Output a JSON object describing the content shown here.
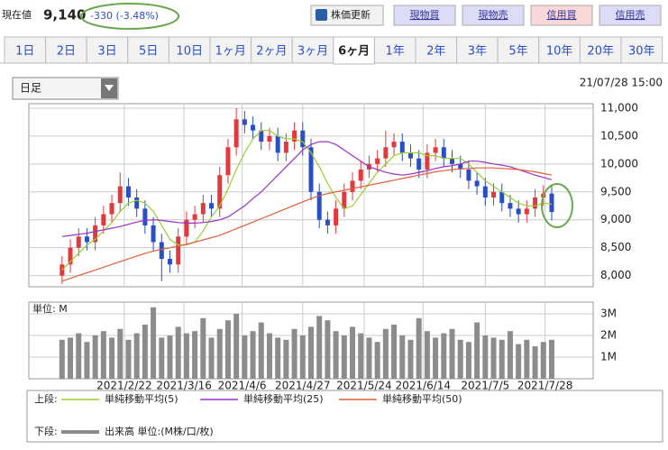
{
  "header": {
    "label": "現在値",
    "price": "9,140",
    "change": "-330 (-3.48%)",
    "refresh": "株価更新",
    "buttons": [
      "現物買",
      "現物売",
      "信用買",
      "信用売"
    ]
  },
  "tabs": [
    "1日",
    "2日",
    "3日",
    "5日",
    "10日",
    "1ヶ月",
    "2ヶ月",
    "3ヶ月",
    "6ヶ月",
    "1年",
    "2年",
    "3年",
    "5年",
    "10年",
    "20年",
    "30年"
  ],
  "selected_tab": 8,
  "dropdown": "日足",
  "timestamp": "21/07/28 15:00",
  "chart_data": [
    {
      "type": "candlestick",
      "legend_title": "上段:",
      "up_color": "#e0393e",
      "down_color": "#2a4fc4",
      "open": [
        8000,
        8200,
        8500,
        8700,
        8600,
        8900,
        9100,
        9300,
        9600,
        9400,
        9200,
        8900,
        8600,
        8300,
        8200,
        8700,
        9000,
        9100,
        9300,
        9200,
        9800,
        10300,
        10800,
        10700,
        10600,
        10400,
        10500,
        10200,
        10400,
        10600,
        10300,
        9500,
        9000,
        8900,
        9200,
        9500,
        9700,
        9900,
        10000,
        10100,
        10300,
        10400,
        10200,
        10100,
        9900,
        10200,
        10300,
        10100,
        10000,
        9900,
        9700,
        9600,
        9400,
        9500,
        9300,
        9200,
        9100,
        9200,
        9400,
        9470
      ],
      "high": [
        8350,
        8650,
        8850,
        8850,
        9050,
        9250,
        9450,
        9850,
        9750,
        9550,
        9350,
        9050,
        8750,
        8450,
        8850,
        9150,
        9250,
        9450,
        9450,
        9950,
        10450,
        11000,
        10950,
        10850,
        10750,
        10650,
        10650,
        10550,
        10750,
        10750,
        10450,
        9650,
        9150,
        9350,
        9650,
        9850,
        10050,
        10150,
        10250,
        10600,
        10550,
        10550,
        10350,
        10250,
        10350,
        10450,
        10450,
        10250,
        10150,
        10050,
        9850,
        9750,
        9650,
        9650,
        9450,
        9350,
        9350,
        9550,
        9620,
        9620
      ],
      "low": [
        7850,
        8050,
        8350,
        8450,
        8450,
        8750,
        8950,
        9150,
        9250,
        9050,
        8750,
        8450,
        7900,
        8050,
        8050,
        8550,
        8850,
        8950,
        9050,
        9050,
        9650,
        10150,
        10550,
        10450,
        10250,
        10250,
        10050,
        10050,
        10250,
        10150,
        9350,
        8850,
        8750,
        8750,
        9050,
        9350,
        9550,
        9750,
        9850,
        9950,
        10150,
        10050,
        9950,
        9750,
        9750,
        10050,
        9950,
        9850,
        9750,
        9550,
        9450,
        9250,
        9250,
        9150,
        9050,
        8950,
        8950,
        9050,
        9250,
        8990
      ],
      "close": [
        8200,
        8500,
        8700,
        8600,
        8900,
        9100,
        9300,
        9600,
        9400,
        9200,
        8900,
        8600,
        8300,
        8200,
        8700,
        9000,
        9100,
        9300,
        9200,
        9800,
        10300,
        10800,
        10700,
        10600,
        10400,
        10500,
        10200,
        10400,
        10600,
        10300,
        9500,
        9000,
        8900,
        9200,
        9500,
        9700,
        9900,
        10000,
        10100,
        10300,
        10400,
        10200,
        10100,
        9900,
        10200,
        10300,
        10100,
        10000,
        9900,
        9700,
        9600,
        9400,
        9500,
        9300,
        9200,
        9100,
        9200,
        9400,
        9470,
        9140
      ],
      "series": [
        {
          "name": "単純移動平均(5)",
          "color": "#9acd32",
          "values": [
            8100,
            8250,
            8400,
            8550,
            8650,
            8800,
            8950,
            9150,
            9300,
            9350,
            9300,
            9150,
            8900,
            8650,
            8550,
            8550,
            8600,
            8800,
            9050,
            9250,
            9550,
            9900,
            10200,
            10450,
            10600,
            10600,
            10500,
            10450,
            10450,
            10400,
            10200,
            9950,
            9650,
            9400,
            9200,
            9250,
            9450,
            9650,
            9850,
            10000,
            10150,
            10200,
            10200,
            10200,
            10150,
            10150,
            10100,
            10100,
            10100,
            10000,
            9850,
            9700,
            9600,
            9500,
            9400,
            9300,
            9250,
            9250,
            9300,
            9280
          ]
        },
        {
          "name": "単純移動平均(25)",
          "color": "#9b30c8",
          "values": [
            8700,
            8720,
            8740,
            8760,
            8790,
            8820,
            8850,
            8880,
            8920,
            8960,
            8990,
            9000,
            8990,
            8970,
            8950,
            8940,
            8940,
            8950,
            8970,
            9000,
            9050,
            9150,
            9250,
            9380,
            9500,
            9650,
            9800,
            9950,
            10100,
            10250,
            10350,
            10400,
            10400,
            10350,
            10250,
            10150,
            10050,
            9950,
            9900,
            9850,
            9820,
            9800,
            9820,
            9850,
            9880,
            9920,
            9950,
            9970,
            10000,
            10050,
            10050,
            10030,
            10000,
            9980,
            9950,
            9900,
            9850,
            9800,
            9760,
            9720
          ]
        },
        {
          "name": "単純移動平均(50)",
          "color": "#e0603a",
          "values": [
            7900,
            7950,
            8000,
            8050,
            8100,
            8150,
            8200,
            8250,
            8300,
            8350,
            8400,
            8440,
            8470,
            8500,
            8530,
            8560,
            8600,
            8640,
            8680,
            8720,
            8780,
            8840,
            8900,
            8960,
            9020,
            9080,
            9140,
            9200,
            9260,
            9320,
            9380,
            9430,
            9470,
            9500,
            9530,
            9560,
            9590,
            9620,
            9650,
            9680,
            9710,
            9740,
            9770,
            9800,
            9830,
            9860,
            9880,
            9900,
            9910,
            9920,
            9930,
            9930,
            9930,
            9920,
            9910,
            9900,
            9880,
            9860,
            9830,
            9800
          ]
        }
      ],
      "xlim": [
        -4,
        64
      ],
      "ylim": [
        7800,
        11080
      ],
      "yticks": [
        {
          "value": 8000,
          "label": "8,000"
        },
        {
          "value": 8500,
          "label": "8,500"
        },
        {
          "value": 9000,
          "label": "9,000"
        },
        {
          "value": 9500,
          "label": "9,500"
        },
        {
          "value": 10000,
          "label": "10,000"
        },
        {
          "value": 10500,
          "label": "10,500"
        },
        {
          "value": 11000,
          "label": "11,000"
        }
      ],
      "grid": true
    },
    {
      "type": "bar",
      "unit_label": "単位: M",
      "legend_title": "下段:",
      "name": "出来高 単位:(M株/口/枚)",
      "color": "#8c8c8c",
      "values": [
        1.8,
        1.9,
        2.1,
        1.7,
        2.0,
        2.2,
        1.9,
        2.3,
        1.8,
        2.1,
        2.5,
        3.3,
        1.9,
        2.0,
        2.4,
        2.1,
        2.2,
        2.8,
        1.9,
        2.3,
        2.7,
        3.0,
        2.0,
        2.2,
        2.6,
        2.1,
        1.9,
        1.8,
        2.3,
        2.0,
        2.4,
        2.9,
        2.7,
        2.2,
        2.0,
        2.4,
        2.1,
        1.9,
        1.7,
        2.3,
        2.5,
        2.0,
        1.8,
        2.8,
        2.2,
        1.9,
        2.1,
        2.3,
        1.8,
        1.7,
        2.6,
        2.0,
        1.9,
        1.8,
        2.2,
        1.6,
        1.8,
        1.5,
        1.7,
        1.8
      ],
      "xlim": [
        -4,
        64
      ],
      "ylim": [
        0,
        3.54
      ],
      "yticks": [
        {
          "value": 1,
          "label": "1M"
        },
        {
          "value": 2,
          "label": "2M"
        },
        {
          "value": 3,
          "label": "3M"
        }
      ],
      "xticks": [
        {
          "value": 7.5,
          "label": "2021/2/22"
        },
        {
          "value": 14.7,
          "label": "2021/3/16"
        },
        {
          "value": 21.7,
          "label": "2021/4/6"
        },
        {
          "value": 29,
          "label": "2021/4/27"
        },
        {
          "value": 36.4,
          "label": "2021/5/24"
        },
        {
          "value": 43.5,
          "label": "2021/6/14"
        },
        {
          "value": 51,
          "label": "2021/7/5"
        },
        {
          "value": 58.2,
          "label": "2021/7/28"
        }
      ],
      "grid": true
    }
  ]
}
